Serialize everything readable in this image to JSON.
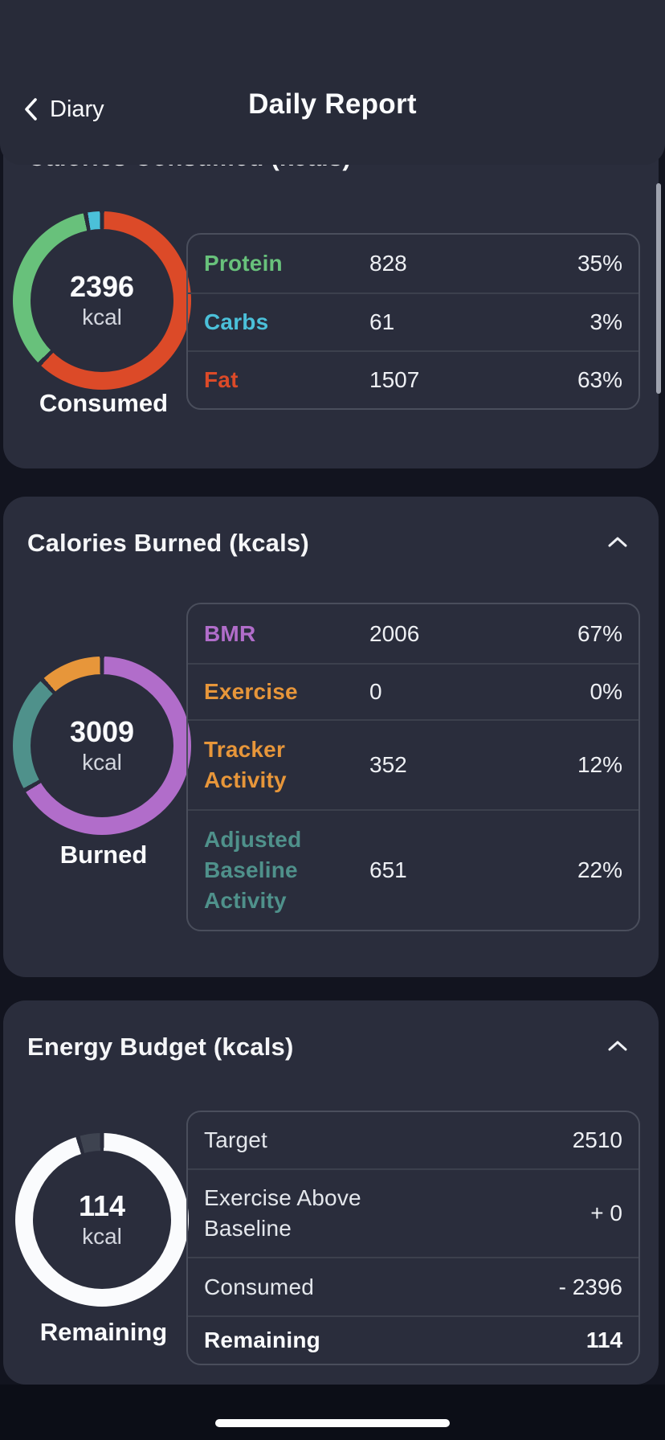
{
  "header": {
    "back_label": "Diary",
    "title": "Daily Report"
  },
  "colors": {
    "protein_green": "#68c17b",
    "carbs_cyan": "#4bc0d9",
    "fat_red": "#dc4a28",
    "bmr_purple": "#b16dca",
    "exercise_orange": "#e7963a",
    "baseline_teal": "#4f918b",
    "ring_white": "#fafbfd",
    "ring_remainder_gray": "#3e4350",
    "card_bg": "#2a2d3c"
  },
  "cards": [
    {
      "title": "Calories Consumed (kcals)",
      "donut": {
        "value": "2396",
        "unit": "kcal",
        "caption": "Consumed",
        "segments": [
          {
            "label": "Fat",
            "pct": 63,
            "color": "#dc4a28"
          },
          {
            "label": "Protein",
            "pct": 35,
            "color": "#68c17b"
          },
          {
            "label": "Carbs",
            "pct": 3,
            "color": "#4bc0d9"
          }
        ]
      },
      "rows": [
        {
          "label": "Protein",
          "value": "828",
          "pct": "35%",
          "color": "#68c17b"
        },
        {
          "label": "Carbs",
          "value": "61",
          "pct": "3%",
          "color": "#4bc0d9"
        },
        {
          "label": "Fat",
          "value": "1507",
          "pct": "63%",
          "color": "#dc4a28"
        }
      ]
    },
    {
      "title": "Calories Burned (kcals)",
      "collapse_icon": "chevron-up",
      "donut": {
        "value": "3009",
        "unit": "kcal",
        "caption": "Burned",
        "segments": [
          {
            "label": "BMR",
            "pct": 66.7,
            "color": "#b16dca"
          },
          {
            "label": "Adjusted Baseline Activity",
            "pct": 21.6,
            "color": "#4f918b"
          },
          {
            "label": "Tracker Activity",
            "pct": 11.7,
            "color": "#e7963a"
          }
        ]
      },
      "rows": [
        {
          "label": "BMR",
          "value": "2006",
          "pct": "67%",
          "color": "#b16dca"
        },
        {
          "label": "Exercise",
          "value": "0",
          "pct": "0%",
          "color": "#e7963a"
        },
        {
          "label": "Tracker Activity",
          "value": "352",
          "pct": "12%",
          "color": "#e7963a"
        },
        {
          "label": "Adjusted Baseline Activity",
          "value": "651",
          "pct": "22%",
          "color": "#4f918b"
        }
      ]
    },
    {
      "title": "Energy Budget (kcals)",
      "collapse_icon": "chevron-up",
      "donut": {
        "value": "114",
        "unit": "kcal",
        "caption": "Remaining",
        "segments": [
          {
            "label": "Used",
            "pct": 95.5,
            "color": "#fafbfd"
          },
          {
            "label": "Remaining",
            "pct": 4.5,
            "color": "#3e4350"
          }
        ]
      },
      "rows": [
        {
          "label": "Target",
          "value": "2510"
        },
        {
          "label": "Exercise Above Baseline",
          "value": "+ 0"
        },
        {
          "label": "Consumed",
          "value": "- 2396"
        },
        {
          "label": "Remaining",
          "value": "114",
          "bold": true
        }
      ]
    }
  ]
}
